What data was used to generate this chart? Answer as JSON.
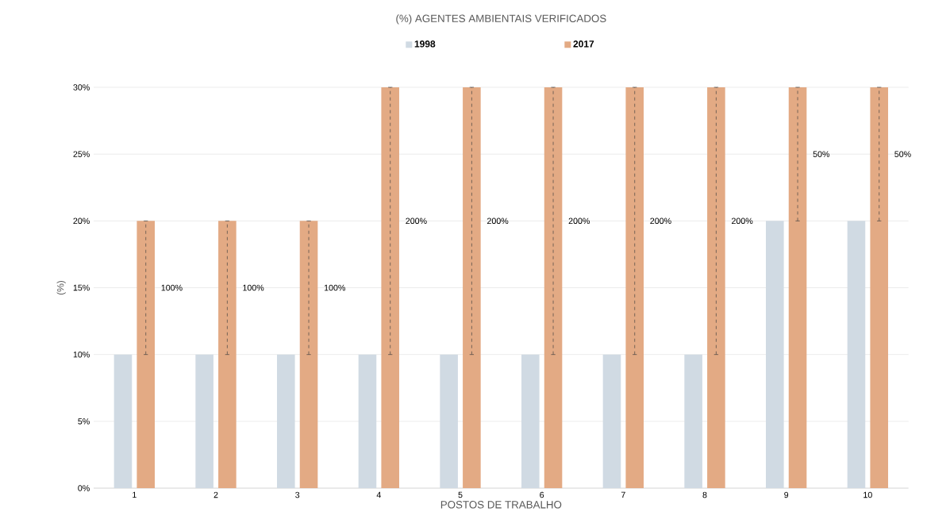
{
  "chart_data": {
    "type": "bar",
    "title": "(%) AGENTES AMBIENTAIS VERIFICADOS",
    "xlabel": "POSTOS DE TRABALHO",
    "ylabel": "(%)",
    "categories": [
      "1",
      "2",
      "3",
      "4",
      "5",
      "6",
      "7",
      "8",
      "9",
      "10"
    ],
    "series": [
      {
        "name": "1998",
        "color": "#d0dae3",
        "values": [
          10,
          10,
          10,
          10,
          10,
          10,
          10,
          10,
          20,
          20
        ]
      },
      {
        "name": "2017",
        "color": "#e3aa84",
        "values": [
          20,
          20,
          20,
          30,
          30,
          30,
          30,
          30,
          30,
          30
        ],
        "errors": [
          [
            10,
            20
          ],
          [
            10,
            20
          ],
          [
            10,
            20
          ],
          [
            10,
            30
          ],
          [
            10,
            30
          ],
          [
            10,
            30
          ],
          [
            10,
            30
          ],
          [
            10,
            30
          ],
          [
            20,
            30
          ],
          [
            20,
            30
          ]
        ]
      }
    ],
    "ylim": [
      0,
      30
    ],
    "yticks": [
      {
        "value": 0,
        "label": "0%"
      },
      {
        "value": 5,
        "label": "5%"
      },
      {
        "value": 10,
        "label": "10%"
      },
      {
        "value": 15,
        "label": "15%"
      },
      {
        "value": 20,
        "label": "20%"
      },
      {
        "value": 25,
        "label": "25%"
      },
      {
        "value": 30,
        "label": "30%"
      }
    ],
    "grid": "y",
    "legend": "top",
    "annotations": [
      "100%",
      "100%",
      "100%",
      "200%",
      "200%",
      "200%",
      "200%",
      "200%",
      "50%",
      "50%"
    ]
  }
}
